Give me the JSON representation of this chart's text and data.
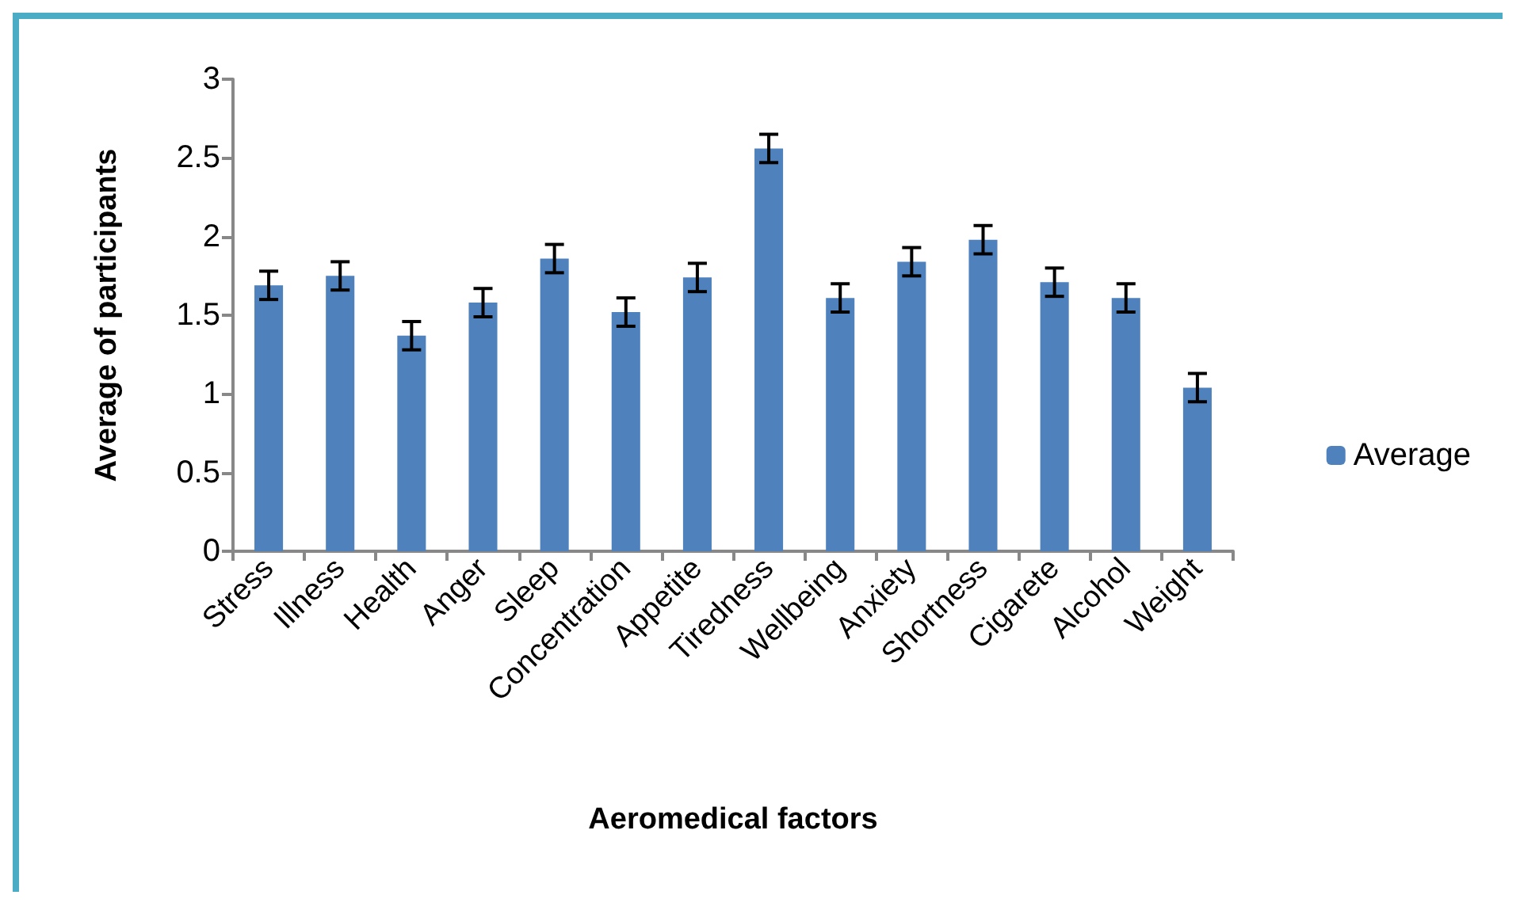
{
  "chart_data": {
    "type": "bar",
    "xlabel": "Aeromedical factors",
    "ylabel": "Average of participants",
    "categories": [
      "Stress",
      "Illness",
      "Health",
      "Anger",
      "Sleep",
      "Concentration",
      "Appetite",
      "Tiredness",
      "Wellbeing",
      "Anxiety",
      "Shortness",
      "Cigarete",
      "Alcohol",
      "Weight"
    ],
    "series": [
      {
        "name": "Average",
        "color": "#4f81bd",
        "values": [
          1.69,
          1.75,
          1.37,
          1.58,
          1.86,
          1.52,
          1.74,
          2.56,
          1.61,
          1.84,
          1.98,
          1.71,
          1.61,
          1.04
        ],
        "errors": [
          0.09,
          0.09,
          0.09,
          0.09,
          0.09,
          0.09,
          0.09,
          0.09,
          0.09,
          0.09,
          0.09,
          0.09,
          0.09,
          0.09
        ]
      }
    ],
    "ylim": [
      0,
      3
    ],
    "yticks": [
      0,
      0.5,
      1,
      1.5,
      2,
      2.5,
      3
    ],
    "grid": false,
    "legend": "right"
  }
}
